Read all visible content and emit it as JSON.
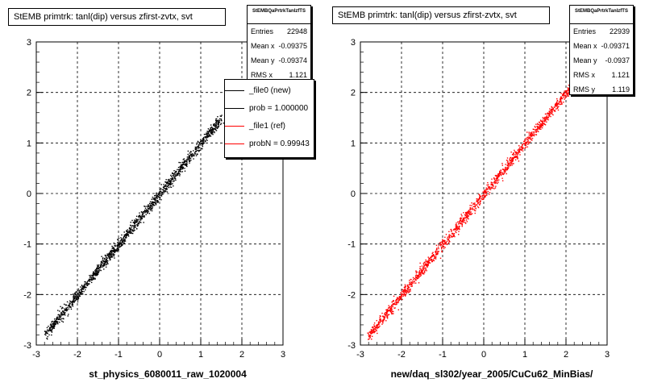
{
  "chart_data": [
    {
      "type": "scatter",
      "title": "StEMB primtrk: tanl(dip) versus zfirst-zvtx, svt",
      "xlabel": "st_physics_6080011_raw_1020004",
      "xlim": [
        -3,
        3
      ],
      "ylim": [
        -3,
        3
      ],
      "x_ticks": [
        "-3",
        "-2",
        "-1",
        "0",
        "1",
        "2",
        "3"
      ],
      "y_ticks": [
        "-3",
        "-2",
        "-1",
        "0",
        "1",
        "2",
        "3"
      ],
      "grid": true,
      "color": "#000000",
      "trend": {
        "x_start": -2.8,
        "y_start": -2.8,
        "x_end": 1.5,
        "y_end": 1.5
      },
      "stats": {
        "name": "StEMBQaPrtrkTanlzfTS",
        "rows": [
          {
            "label": "Entries",
            "value": "22948"
          },
          {
            "label": "Mean x",
            "value": "-0.09375"
          },
          {
            "label": "Mean y",
            "value": "-0.09374"
          },
          {
            "label": "RMS x",
            "value": "1.121"
          }
        ]
      },
      "legend": {
        "placement": "top-right",
        "entries": [
          {
            "label": "_file0 (new)",
            "color": "#000000"
          },
          {
            "label": "prob = 1.000000",
            "color": "#000000"
          },
          {
            "label": "_file1 (ref)",
            "color": "#ff0000"
          },
          {
            "label": "probN = 0.99943",
            "color": "#ff0000"
          }
        ]
      }
    },
    {
      "type": "scatter",
      "title": "StEMB primtrk: tanl(dip) versus zfirst-zvtx, svt",
      "xlabel": "new/daq_sl302/year_2005/CuCu62_MinBias/",
      "xlim": [
        -3,
        3
      ],
      "ylim": [
        -3,
        3
      ],
      "x_ticks": [
        "-3",
        "-2",
        "-1",
        "0",
        "1",
        "2",
        "3"
      ],
      "y_ticks": [
        "-3",
        "-2",
        "-1",
        "0",
        "1",
        "2",
        "3"
      ],
      "grid": true,
      "color": "#ff0000",
      "trend": {
        "x_start": -2.8,
        "y_start": -2.8,
        "x_end": 2.1,
        "y_end": 2.1
      },
      "stats": {
        "name": "StEMBQaPrtrkTanlzfTS",
        "rows": [
          {
            "label": "Entries",
            "value": "22939"
          },
          {
            "label": "Mean x",
            "value": "-0.09371"
          },
          {
            "label": "Mean y",
            "value": "-0.0937"
          },
          {
            "label": "RMS x",
            "value": "1.121"
          },
          {
            "label": "RMS y",
            "value": "1.119"
          }
        ]
      }
    }
  ]
}
